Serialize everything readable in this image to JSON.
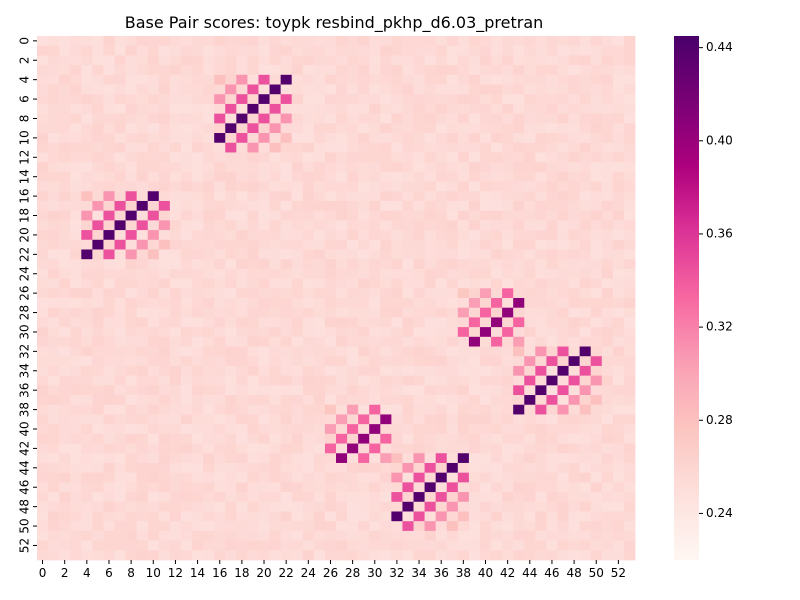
{
  "chart_data": {
    "type": "heatmap",
    "title": "Base Pair scores: toypk resbind_pkhp_d6.03_pretran",
    "xlabel": "",
    "ylabel": "",
    "n": 54,
    "x_tick_labels": [
      "0",
      "2",
      "4",
      "6",
      "8",
      "10",
      "12",
      "14",
      "16",
      "18",
      "20",
      "22",
      "24",
      "26",
      "28",
      "30",
      "32",
      "34",
      "36",
      "38",
      "40",
      "42",
      "44",
      "46",
      "48",
      "50",
      "52"
    ],
    "y_tick_labels": [
      "0",
      "2",
      "4",
      "6",
      "8",
      "10",
      "12",
      "14",
      "16",
      "18",
      "20",
      "22",
      "24",
      "26",
      "28",
      "30",
      "32",
      "34",
      "36",
      "38",
      "40",
      "42",
      "44",
      "46",
      "48",
      "50",
      "52"
    ],
    "colormap": "RdPu",
    "vmin": 0.22,
    "vmax": 0.445,
    "background_value": 0.255,
    "colorbar_tick_labels": [
      "0.24",
      "0.28",
      "0.32",
      "0.36",
      "0.40",
      "0.44"
    ],
    "colorbar_tick_values": [
      0.24,
      0.28,
      0.32,
      0.36,
      0.4,
      0.44
    ],
    "blocks": [
      {
        "rows": [
          4,
          11
        ],
        "cols": [
          16,
          22
        ],
        "diag_sum": 26,
        "peak": 0.44,
        "shoulder": 0.345,
        "edge": 0.31
      },
      {
        "rows": [
          16,
          22
        ],
        "cols": [
          4,
          11
        ],
        "diag_sum": 26,
        "peak": 0.44,
        "shoulder": 0.345,
        "edge": 0.31
      },
      {
        "rows": [
          26,
          31
        ],
        "cols": [
          38,
          43
        ],
        "diag_sum": 70,
        "peak": 0.405,
        "shoulder": 0.335,
        "edge": 0.305
      },
      {
        "rows": [
          32,
          38
        ],
        "cols": [
          43,
          50
        ],
        "diag_sum": 81,
        "peak": 0.44,
        "shoulder": 0.345,
        "edge": 0.31
      },
      {
        "rows": [
          38,
          43
        ],
        "cols": [
          26,
          31
        ],
        "diag_sum": 70,
        "peak": 0.405,
        "shoulder": 0.335,
        "edge": 0.305
      },
      {
        "rows": [
          43,
          50
        ],
        "cols": [
          32,
          38
        ],
        "diag_sum": 81,
        "peak": 0.44,
        "shoulder": 0.345,
        "edge": 0.31
      }
    ]
  }
}
